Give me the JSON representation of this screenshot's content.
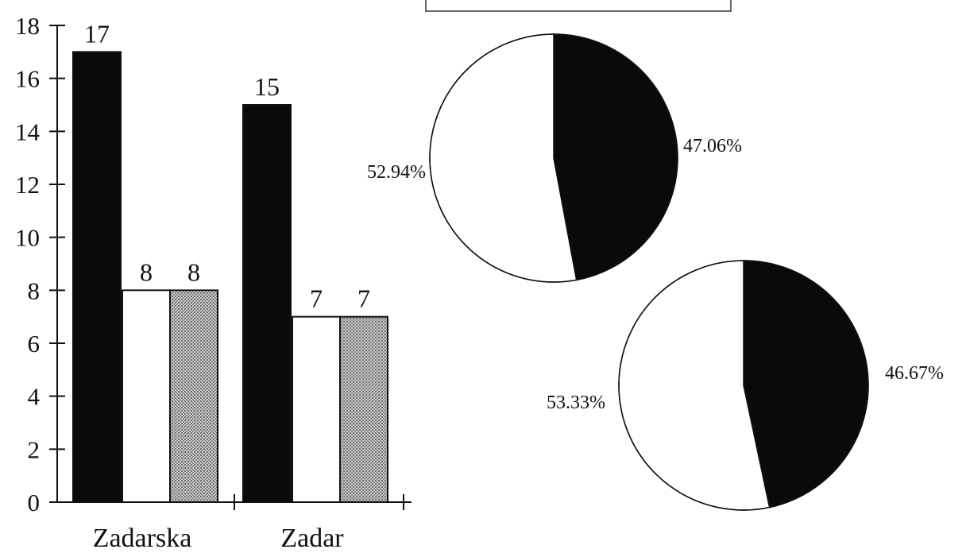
{
  "chart_data": [
    {
      "type": "bar",
      "categories": [
        "Zadarska",
        "Zadar"
      ],
      "ylim": [
        0,
        18
      ],
      "yticks": [
        0,
        2,
        4,
        6,
        8,
        10,
        12,
        14,
        16,
        18
      ],
      "series": [
        {
          "values": [
            17,
            15
          ],
          "fill": "black"
        },
        {
          "values": [
            8,
            7
          ],
          "fill": "white"
        },
        {
          "values": [
            8,
            7
          ],
          "fill": "hatched-gray"
        }
      ],
      "data_labels": [
        [
          "17",
          "8",
          "8"
        ],
        [
          "15",
          "7",
          "7"
        ]
      ],
      "grid": false,
      "colors": {
        "black": "#0a0a0a",
        "white": "#ffffff",
        "hatched": "#9a9a9a"
      }
    },
    {
      "type": "pie",
      "slices": [
        {
          "label": "47.06%",
          "value": 47.06,
          "fill": "black"
        },
        {
          "label": "52.94%",
          "value": 52.94,
          "fill": "white"
        }
      ]
    },
    {
      "type": "pie",
      "slices": [
        {
          "label": "46.67%",
          "value": 46.67,
          "fill": "black"
        },
        {
          "label": "53.33%",
          "value": 53.33,
          "fill": "white"
        }
      ]
    }
  ]
}
